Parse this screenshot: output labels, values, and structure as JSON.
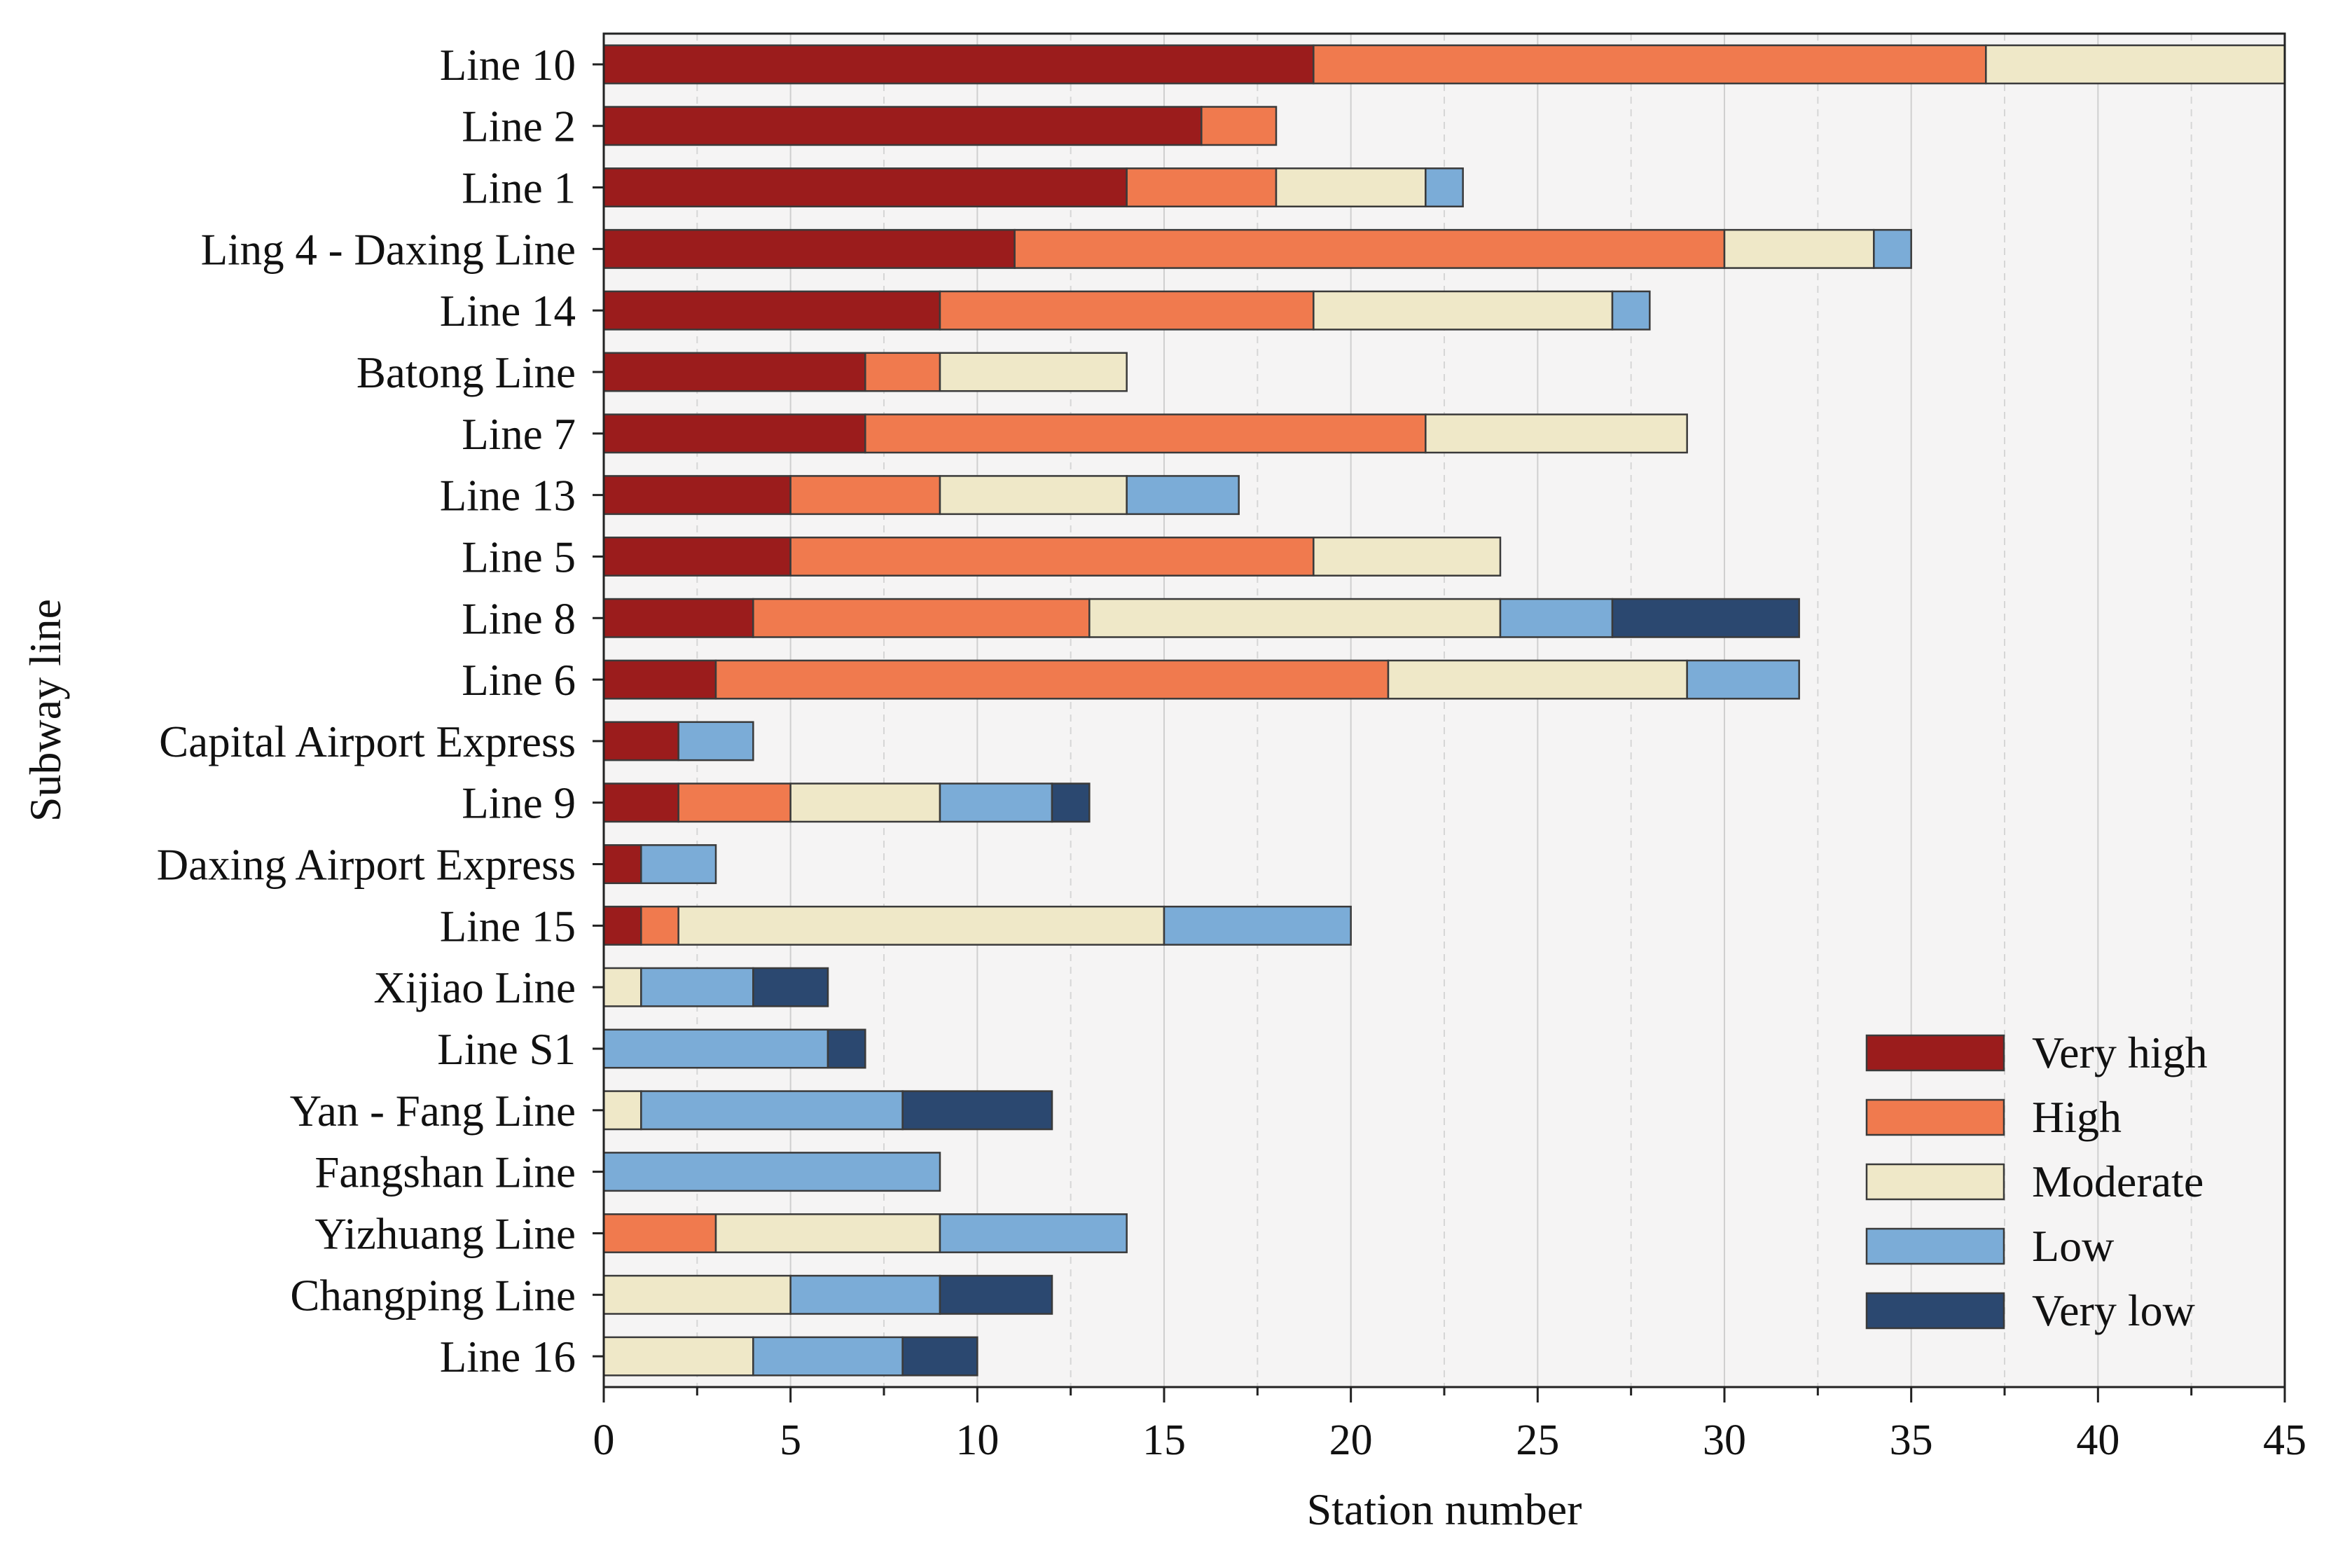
{
  "chart_data": {
    "type": "bar",
    "orientation": "horizontal",
    "stacked": true,
    "title": "",
    "xlabel": "Station number",
    "ylabel": "Subway line",
    "xlim": [
      0,
      45
    ],
    "xticks": [
      "0",
      "5",
      "10",
      "15",
      "20",
      "25",
      "30",
      "35",
      "40",
      "45"
    ],
    "grid": true,
    "legend_position": "bottom-right",
    "categories": [
      "Line 10",
      "Line 2",
      "Line 1",
      "Ling 4 - Daxing Line",
      "Line 14",
      "Batong Line",
      "Line 7",
      "Line 13",
      "Line 5",
      "Line 8",
      "Line 6",
      "Capital Airport Express",
      "Line 9",
      "Daxing Airport Express",
      "Line 15",
      "Xijiao Line",
      "Line S1",
      "Yan - Fang Line",
      "Fangshan Line",
      "Yizhuang Line",
      "Changping Line",
      "Line 16"
    ],
    "series": [
      {
        "name": "Very high",
        "color": "#9b1c1c",
        "values": [
          19,
          16,
          14,
          11,
          9,
          7,
          7,
          5,
          5,
          4,
          3,
          2,
          2,
          1,
          1,
          0,
          0,
          0,
          0,
          0,
          0,
          0
        ]
      },
      {
        "name": "High",
        "color": "#f07a4e",
        "values": [
          18,
          2,
          4,
          19,
          10,
          2,
          15,
          4,
          14,
          9,
          18,
          0,
          3,
          0,
          1,
          0,
          0,
          0,
          0,
          3,
          0,
          0
        ]
      },
      {
        "name": "Moderate",
        "color": "#efe8c8",
        "values": [
          8,
          0,
          4,
          4,
          8,
          5,
          7,
          5,
          5,
          11,
          8,
          0,
          4,
          0,
          13,
          1,
          0,
          1,
          0,
          6,
          5,
          4
        ]
      },
      {
        "name": "Low",
        "color": "#7bacd7",
        "values": [
          0,
          0,
          1,
          1,
          1,
          0,
          0,
          3,
          0,
          3,
          3,
          2,
          3,
          2,
          5,
          3,
          6,
          7,
          9,
          5,
          4,
          4
        ]
      },
      {
        "name": "Very low",
        "color": "#2b4870",
        "values": [
          0,
          0,
          0,
          0,
          0,
          0,
          0,
          0,
          0,
          5,
          0,
          0,
          1,
          0,
          0,
          2,
          1,
          4,
          0,
          0,
          3,
          2
        ]
      }
    ]
  }
}
